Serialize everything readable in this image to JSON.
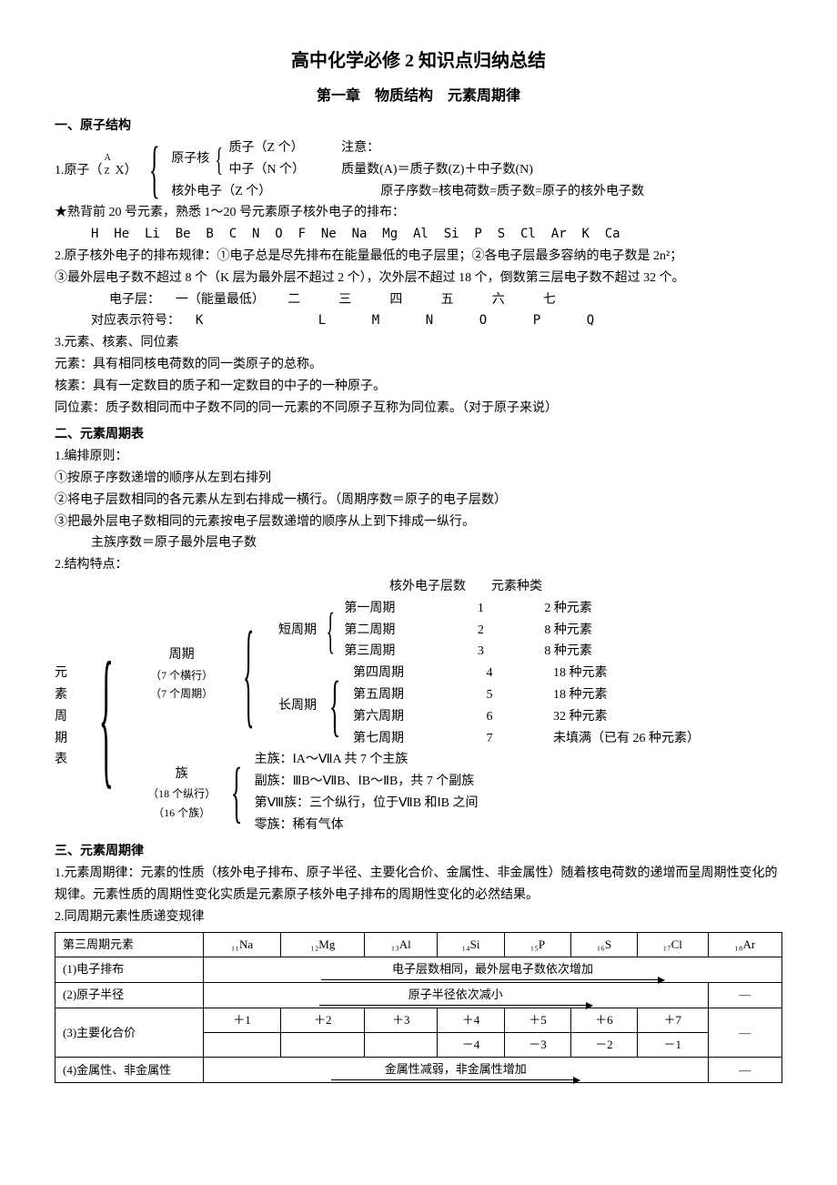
{
  "title_main": "高中化学必修 2 知识点归纳总结",
  "title_sub": "第一章　物质结构　元素周期律",
  "s1_h": "一、原子结构",
  "s1_atom_label": "1.原子（",
  "s1_atom_symbol_top": "A",
  "s1_atom_symbol_bot": "Z",
  "s1_atom_symbol_x": "X",
  "s1_atom_close": "）",
  "s1_nucleus": "原子核",
  "s1_proton": "质子（Z 个）",
  "s1_neutron": "中子（N 个）",
  "s1_shell_e": "核外电子（Z 个）",
  "s1_note": "注意：",
  "s1_mass": "质量数(A)＝质子数(Z)＋中子数(N)",
  "s1_seq": "原子序数=核电荷数=质子数=原子的核外电子数",
  "s1_star": "★熟背前 20 号元素，熟悉 1～20 号元素原子核外电子的排布：",
  "s1_elems": "H  He  Li  Be  B  C  N  O  F  Ne  Na  Mg  Al  Si  P  S  Cl  Ar  K  Ca",
  "s1_rule2": "2.原子核外电子的排布规律：①电子总是尽先排布在能量最低的电子层里；②各电子层最多容纳的电子数是 2n²；",
  "s1_rule2b": "③最外层电子数不超过 8 个（K 层为最外层不超过 2 个），次外层不超过 18 个，倒数第三层电子数不超过 32 个。",
  "s1_layer_label": "电子层：  一（能量最低）   二     三     四     五     六     七",
  "s1_layer_sym": "对应表示符号：  K               L      M      N      O      P      Q",
  "s1_3": "3.元素、核素、同位素",
  "s1_3a": "元素：具有相同核电荷数的同一类原子的总称。",
  "s1_3b": "核素：具有一定数目的质子和一定数目的中子的一种原子。",
  "s1_3c": "同位素：质子数相同而中子数不同的同一元素的不同原子互称为同位素。（对于原子来说）",
  "s2_h": "二、元素周期表",
  "s2_1": "1.编排原则：",
  "s2_1a": "①按原子序数递增的顺序从左到右排列",
  "s2_1b": "②将电子层数相同的各元素从左到右排成一横行。（周期序数＝原子的电子层数）",
  "s2_1c": "③把最外层电子数相同的元素按电子层数递增的顺序从上到下排成一纵行。",
  "s2_1d": "主族序数＝原子最外层电子数",
  "s2_2": "2.结构特点：",
  "struct_root": "元\n素\n周\n期\n表",
  "struct_period": "周期",
  "struct_period_sub1": "（7 个横行）",
  "struct_period_sub2": "（7 个周期）",
  "struct_short": "短周期",
  "struct_long": "长周期",
  "struct_header_layers": "核外电子层数",
  "struct_header_kinds": "元素种类",
  "struct_rows": [
    {
      "name": "第一周期",
      "layers": "1",
      "kinds": "2 种元素"
    },
    {
      "name": "第二周期",
      "layers": "2",
      "kinds": "8 种元素"
    },
    {
      "name": "第三周期",
      "layers": "3",
      "kinds": "8 种元素"
    },
    {
      "name": "第四周期",
      "layers": "4",
      "kinds": "18 种元素"
    },
    {
      "name": "第五周期",
      "layers": "5",
      "kinds": "18 种元素"
    },
    {
      "name": "第六周期",
      "layers": "6",
      "kinds": "32 种元素"
    },
    {
      "name": "第七周期",
      "layers": "7",
      "kinds": "未填满（已有 26 种元素）"
    }
  ],
  "struct_group": "族",
  "struct_group_sub1": "（18 个纵行）",
  "struct_group_sub2": "（16 个族）",
  "struct_g1": "主族：ⅠA～ⅦA 共 7 个主族",
  "struct_g2": "副族：ⅢB～ⅦB、ⅠB～ⅡB，共 7 个副族",
  "struct_g3": "第Ⅷ族：三个纵行，位于ⅦB 和ⅠB 之间",
  "struct_g4": "零族：稀有气体",
  "s3_h": "三、元素周期律",
  "s3_1": "1.元素周期律：元素的性质（核外电子排布、原子半径、主要化合价、金属性、非金属性）随着核电荷数的递增而呈周期性变化的规律。元素性质的周期性变化实质是元素原子核外电子排布的周期性变化的必然结果。",
  "s3_2": "2.同周期元素性质递变规律",
  "table_h0": "第三周期元素",
  "table_elements": [
    "₁₁Na",
    "₁₂Mg",
    "₁₃Al",
    "₁₄Si",
    "₁₅P",
    "₁₆S",
    "₁₇Cl",
    "₁₈Ar"
  ],
  "table_r1_h": "(1)电子排布",
  "table_r1_txt": "电子层数相同，最外层电子数依次增加",
  "table_r2_h": "(2)原子半径",
  "table_r2_txt": "原子半径依次减小",
  "table_r3_h": "(3)主要化合价",
  "table_r3_vals_top": [
    "＋1",
    "＋2",
    "＋3",
    "＋4",
    "＋5",
    "＋6",
    "＋7",
    "—"
  ],
  "table_r3_vals_bot": [
    "",
    "",
    "",
    "－4",
    "－3",
    "－2",
    "－1",
    ""
  ],
  "table_r4_h": "(4)金属性、非金属性",
  "table_r4_txt": "金属性减弱，非金属性增加",
  "dash": "—"
}
